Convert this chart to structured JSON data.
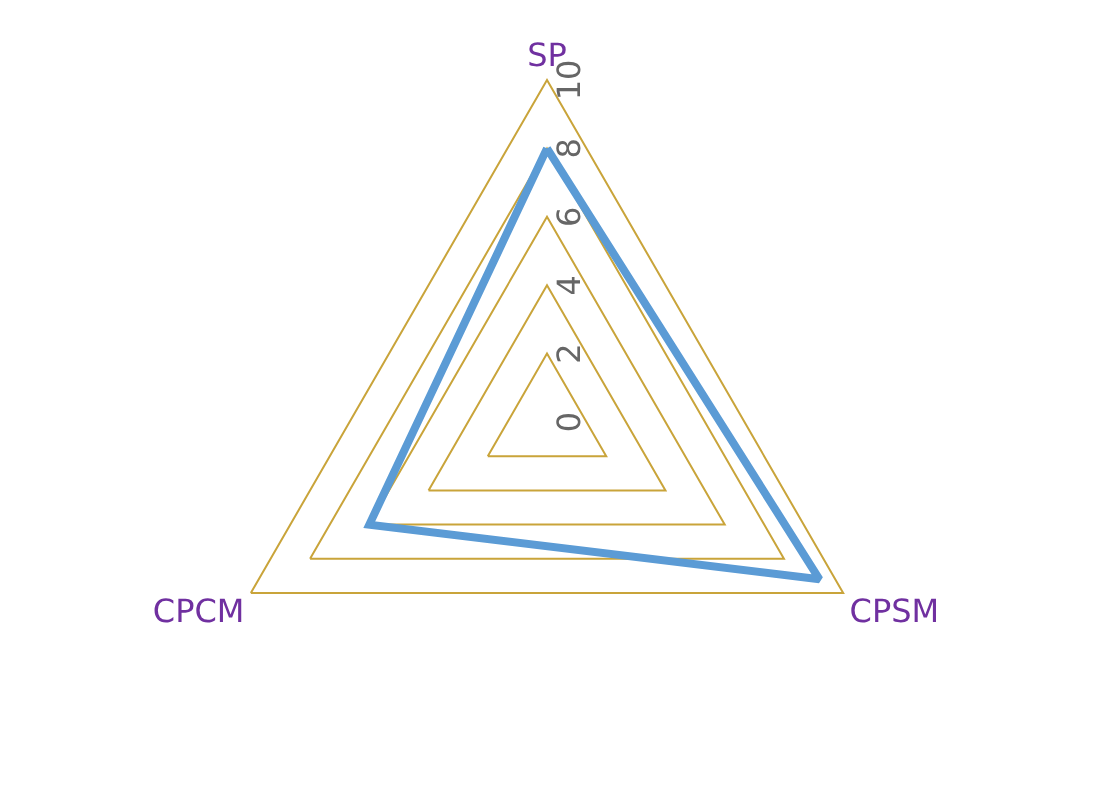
{
  "chart_data": {
    "type": "radar",
    "categories": [
      "SP",
      "CPSM",
      "CPCM"
    ],
    "series": [
      {
        "color": "#5b9bd5",
        "values": [
          8,
          9.2,
          6
        ]
      }
    ],
    "ylim": [
      0,
      10
    ],
    "yticks": [
      0,
      2,
      4,
      6,
      8,
      10
    ],
    "grid": true,
    "marker": "none",
    "line_style": "solid",
    "legend": false
  }
}
